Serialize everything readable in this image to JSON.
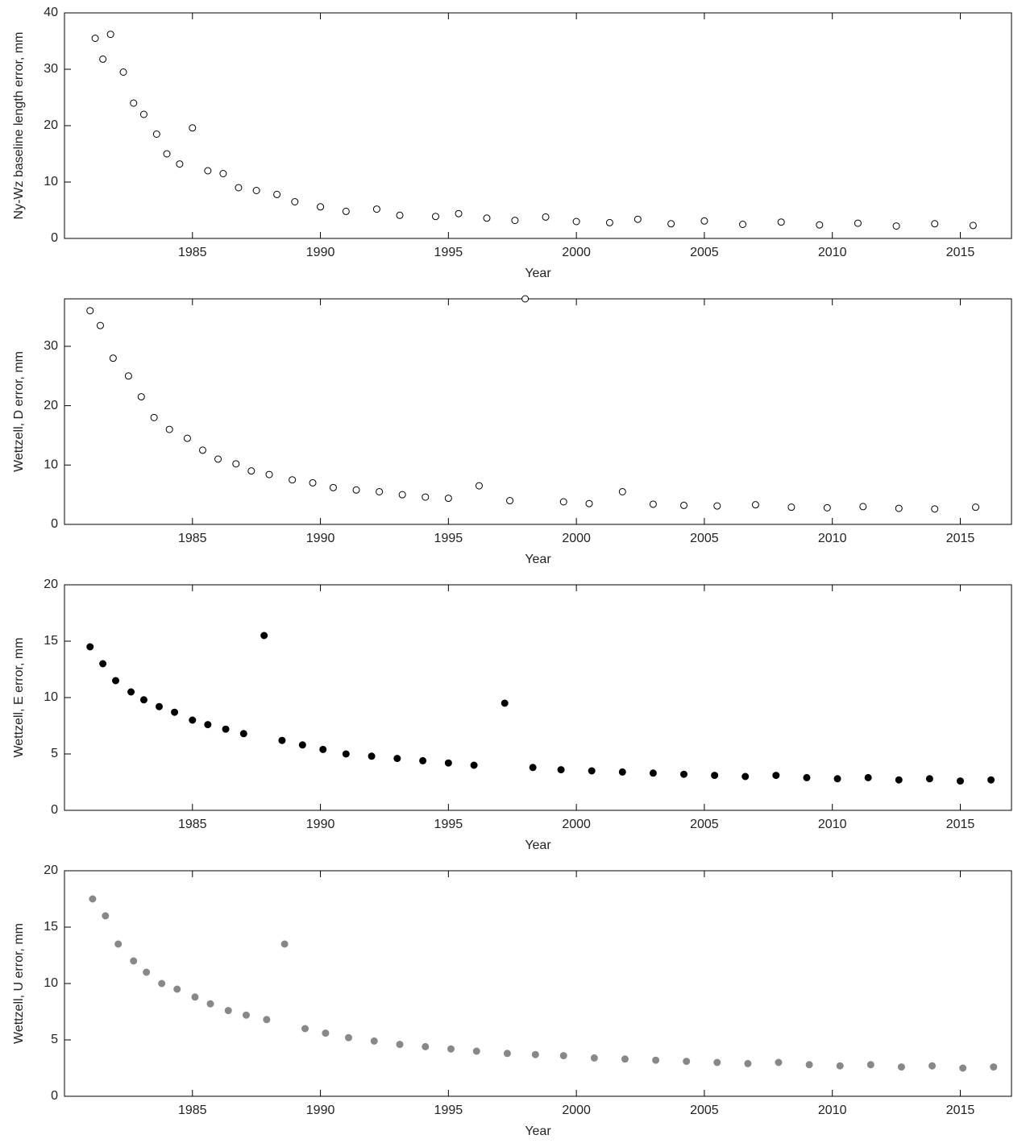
{
  "chart_data": [
    {
      "type": "scatter",
      "y_label": "Ny-Wz baseline length error, mm",
      "x_label": "Year",
      "marker": "open",
      "color": "#000000",
      "xlim": [
        1980,
        2017
      ],
      "xticks": [
        1985,
        1990,
        1995,
        2000,
        2005,
        2010,
        2015
      ],
      "ylim": [
        0,
        40
      ],
      "yticks": [
        0,
        10,
        20,
        30,
        40
      ],
      "x": [
        1981.2,
        1981.5,
        1981.8,
        1982.3,
        1982.7,
        1983.1,
        1983.6,
        1984.0,
        1984.5,
        1985.0,
        1985.6,
        1986.2,
        1986.8,
        1987.5,
        1988.3,
        1989.0,
        1990.0,
        1991.0,
        1992.2,
        1993.1,
        1994.5,
        1995.4,
        1996.5,
        1997.6,
        1998.8,
        2000.0,
        2001.3,
        2002.4,
        2003.7,
        2005.0,
        2006.5,
        2008.0,
        2009.5,
        2011.0,
        2012.5,
        2014.0,
        2015.5
      ],
      "y": [
        35.5,
        31.8,
        36.2,
        29.5,
        24.0,
        22.0,
        18.5,
        15.0,
        13.2,
        19.6,
        12.0,
        11.5,
        9.0,
        8.5,
        7.8,
        6.5,
        5.6,
        4.8,
        5.2,
        4.1,
        3.9,
        4.4,
        3.6,
        3.2,
        3.8,
        3.0,
        2.8,
        3.4,
        2.6,
        3.1,
        2.5,
        2.9,
        2.4,
        2.7,
        2.2,
        2.6,
        2.3
      ]
    },
    {
      "type": "scatter",
      "y_label": "Wettzell, D error, mm",
      "x_label": "Year",
      "marker": "open",
      "color": "#000000",
      "xlim": [
        1980,
        2017
      ],
      "xticks": [
        1985,
        1990,
        1995,
        2000,
        2005,
        2010,
        2015
      ],
      "ylim": [
        0,
        38
      ],
      "yticks": [
        0,
        10,
        20,
        30
      ],
      "x": [
        1981.0,
        1981.4,
        1981.9,
        1982.5,
        1983.0,
        1983.5,
        1984.1,
        1984.8,
        1985.4,
        1986.0,
        1986.7,
        1987.3,
        1988.0,
        1988.9,
        1989.7,
        1990.5,
        1991.4,
        1992.3,
        1993.2,
        1994.1,
        1995.0,
        1996.2,
        1997.4,
        1998.0,
        1999.5,
        2000.5,
        2001.8,
        2003.0,
        2004.2,
        2005.5,
        2007.0,
        2008.4,
        2009.8,
        2011.2,
        2012.6,
        2014.0,
        2015.6
      ],
      "y": [
        36.0,
        33.5,
        28.0,
        25.0,
        21.5,
        18.0,
        16.0,
        14.5,
        12.5,
        11.0,
        10.2,
        9.0,
        8.4,
        7.5,
        7.0,
        6.2,
        5.8,
        5.5,
        5.0,
        4.6,
        4.4,
        6.5,
        4.0,
        38.0,
        3.8,
        3.5,
        5.5,
        3.4,
        3.2,
        3.1,
        3.3,
        2.9,
        2.8,
        3.0,
        2.7,
        2.6,
        2.9
      ]
    },
    {
      "type": "scatter",
      "y_label": "Wettzell, E error, mm",
      "x_label": "Year",
      "marker": "filled",
      "color": "#000000",
      "xlim": [
        1980,
        2017
      ],
      "xticks": [
        1985,
        1990,
        1995,
        2000,
        2005,
        2010,
        2015
      ],
      "ylim": [
        0,
        20
      ],
      "yticks": [
        0,
        5,
        10,
        15,
        20
      ],
      "x": [
        1981.0,
        1981.5,
        1982.0,
        1982.6,
        1983.1,
        1983.7,
        1984.3,
        1985.0,
        1985.6,
        1986.3,
        1987.0,
        1987.8,
        1988.5,
        1989.3,
        1990.1,
        1991.0,
        1992.0,
        1993.0,
        1994.0,
        1995.0,
        1996.0,
        1997.2,
        1998.3,
        1999.4,
        2000.6,
        2001.8,
        2003.0,
        2004.2,
        2005.4,
        2006.6,
        2007.8,
        2009.0,
        2010.2,
        2011.4,
        2012.6,
        2013.8,
        2015.0,
        2016.2
      ],
      "y": [
        14.5,
        13.0,
        11.5,
        10.5,
        9.8,
        9.2,
        8.7,
        8.0,
        7.6,
        7.2,
        6.8,
        15.5,
        6.2,
        5.8,
        5.4,
        5.0,
        4.8,
        4.6,
        4.4,
        4.2,
        4.0,
        9.5,
        3.8,
        3.6,
        3.5,
        3.4,
        3.3,
        3.2,
        3.1,
        3.0,
        3.1,
        2.9,
        2.8,
        2.9,
        2.7,
        2.8,
        2.6,
        2.7
      ]
    },
    {
      "type": "scatter",
      "y_label": "Wettzell, U error, mm",
      "x_label": "Year",
      "marker": "filled",
      "color": "#888888",
      "xlim": [
        1980,
        2017
      ],
      "xticks": [
        1985,
        1990,
        1995,
        2000,
        2005,
        2010,
        2015
      ],
      "ylim": [
        0,
        20
      ],
      "yticks": [
        0,
        5,
        10,
        15,
        20
      ],
      "x": [
        1981.1,
        1981.6,
        1982.1,
        1982.7,
        1983.2,
        1983.8,
        1984.4,
        1985.1,
        1985.7,
        1986.4,
        1987.1,
        1987.9,
        1988.6,
        1989.4,
        1990.2,
        1991.1,
        1992.1,
        1993.1,
        1994.1,
        1995.1,
        1996.1,
        1997.3,
        1998.4,
        1999.5,
        2000.7,
        2001.9,
        2003.1,
        2004.3,
        2005.5,
        2006.7,
        2007.9,
        2009.1,
        2010.3,
        2011.5,
        2012.7,
        2013.9,
        2015.1,
        2016.3
      ],
      "y": [
        17.5,
        16.0,
        13.5,
        12.0,
        11.0,
        10.0,
        9.5,
        8.8,
        8.2,
        7.6,
        7.2,
        6.8,
        13.5,
        6.0,
        5.6,
        5.2,
        4.9,
        4.6,
        4.4,
        4.2,
        4.0,
        3.8,
        3.7,
        3.6,
        3.4,
        3.3,
        3.2,
        3.1,
        3.0,
        2.9,
        3.0,
        2.8,
        2.7,
        2.8,
        2.6,
        2.7,
        2.5,
        2.6
      ]
    }
  ]
}
